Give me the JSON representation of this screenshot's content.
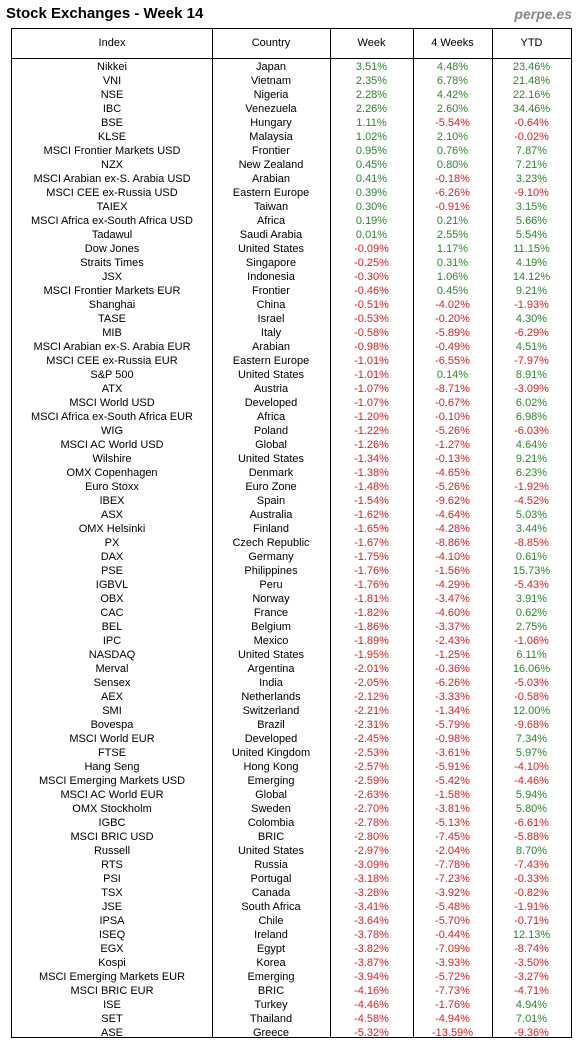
{
  "header": {
    "title": "Stock Exchanges - Week 14",
    "brand": "perpe.es"
  },
  "table": {
    "columns": [
      "Index",
      "Country",
      "Week",
      "4 Weeks",
      "YTD"
    ],
    "rows": [
      [
        "Nikkei",
        "Japan",
        "3.51%",
        "4.48%",
        "23.46%"
      ],
      [
        "VNI",
        "Vietnam",
        "2.35%",
        "6.78%",
        "21.48%"
      ],
      [
        "NSE",
        "Nigeria",
        "2.28%",
        "4.42%",
        "22.16%"
      ],
      [
        "IBC",
        "Venezuela",
        "2.26%",
        "2.60%",
        "34.46%"
      ],
      [
        "BSE",
        "Hungary",
        "1.11%",
        "-5.54%",
        "-0.64%"
      ],
      [
        "KLSE",
        "Malaysia",
        "1.02%",
        "2.10%",
        "-0.02%"
      ],
      [
        "MSCI Frontier Markets USD",
        "Frontier",
        "0.95%",
        "0.76%",
        "7.87%"
      ],
      [
        "NZX",
        "New Zealand",
        "0.45%",
        "0.80%",
        "7.21%"
      ],
      [
        "MSCI Arabian ex-S. Arabia USD",
        "Arabian",
        "0.41%",
        "-0.18%",
        "3.23%"
      ],
      [
        "MSCI CEE ex-Russia USD",
        "Eastern Europe",
        "0.39%",
        "-6.26%",
        "-9.10%"
      ],
      [
        "TAIEX",
        "Taiwan",
        "0.30%",
        "-0.91%",
        "3.15%"
      ],
      [
        "MSCI Africa ex-South Africa USD",
        "Africa",
        "0.19%",
        "0.21%",
        "5.66%"
      ],
      [
        "Tadawul",
        "Saudi Arabia",
        "0.01%",
        "2.55%",
        "5.54%"
      ],
      [
        "Dow Jones",
        "United States",
        "-0.09%",
        "1.17%",
        "11.15%"
      ],
      [
        "Straits Times",
        "Singapore",
        "-0.25%",
        "0.31%",
        "4.19%"
      ],
      [
        "JSX",
        "Indonesia",
        "-0.30%",
        "1.06%",
        "14.12%"
      ],
      [
        "MSCI Frontier Markets EUR",
        "Frontier",
        "-0.46%",
        "0.45%",
        "9.21%"
      ],
      [
        "Shanghai",
        "China",
        "-0.51%",
        "-4.02%",
        "-1.93%"
      ],
      [
        "TASE",
        "Israel",
        "-0.53%",
        "-0.20%",
        "4.30%"
      ],
      [
        "MIB",
        "Italy",
        "-0.58%",
        "-5.89%",
        "-6.29%"
      ],
      [
        "MSCI Arabian ex-S. Arabia EUR",
        "Arabian",
        "-0.98%",
        "-0.49%",
        "4.51%"
      ],
      [
        "MSCI CEE ex-Russia EUR",
        "Eastern Europe",
        "-1.01%",
        "-6.55%",
        "-7.97%"
      ],
      [
        "S&P 500",
        "United States",
        "-1.01%",
        "0.14%",
        "8.91%"
      ],
      [
        "ATX",
        "Austria",
        "-1.07%",
        "-8.71%",
        "-3.09%"
      ],
      [
        "MSCI World USD",
        "Developed",
        "-1.07%",
        "-0.67%",
        "6.02%"
      ],
      [
        "MSCI Africa ex-South Africa EUR",
        "Africa",
        "-1.20%",
        "-0.10%",
        "6.98%"
      ],
      [
        "WIG",
        "Poland",
        "-1.22%",
        "-5.26%",
        "-6.03%"
      ],
      [
        "MSCI AC World USD",
        "Global",
        "-1.26%",
        "-1.27%",
        "4.64%"
      ],
      [
        "Wilshire",
        "United States",
        "-1.34%",
        "-0.13%",
        "9.21%"
      ],
      [
        "OMX Copenhagen",
        "Denmark",
        "-1.38%",
        "-4.65%",
        "6.23%"
      ],
      [
        "Euro Stoxx",
        "Euro Zone",
        "-1.48%",
        "-5.26%",
        "-1.92%"
      ],
      [
        "IBEX",
        "Spain",
        "-1.54%",
        "-9.62%",
        "-4.52%"
      ],
      [
        "ASX",
        "Australia",
        "-1.62%",
        "-4.64%",
        "5.03%"
      ],
      [
        "OMX Helsinki",
        "Finland",
        "-1.65%",
        "-4.28%",
        "3.44%"
      ],
      [
        "PX",
        "Czech Republic",
        "-1.67%",
        "-8.86%",
        "-8.85%"
      ],
      [
        "DAX",
        "Germany",
        "-1.75%",
        "-4.10%",
        "0.61%"
      ],
      [
        "PSE",
        "Philippines",
        "-1.76%",
        "-1.56%",
        "15.73%"
      ],
      [
        "IGBVL",
        "Peru",
        "-1.76%",
        "-4.29%",
        "-5.43%"
      ],
      [
        "OBX",
        "Norway",
        "-1.81%",
        "-3.47%",
        "3.91%"
      ],
      [
        "CAC",
        "France",
        "-1.82%",
        "-4.60%",
        "0.62%"
      ],
      [
        "BEL",
        "Belgium",
        "-1.86%",
        "-3.37%",
        "2.75%"
      ],
      [
        "IPC",
        "Mexico",
        "-1.89%",
        "-2.43%",
        "-1.06%"
      ],
      [
        "NASDAQ",
        "United States",
        "-1.95%",
        "-1.25%",
        "6.11%"
      ],
      [
        "Merval",
        "Argentina",
        "-2.01%",
        "-0.36%",
        "16.06%"
      ],
      [
        "Sensex",
        "India",
        "-2.05%",
        "-6.26%",
        "-5.03%"
      ],
      [
        "AEX",
        "Netherlands",
        "-2.12%",
        "-3.33%",
        "-0.58%"
      ],
      [
        "SMI",
        "Switzerland",
        "-2.21%",
        "-1.34%",
        "12.00%"
      ],
      [
        "Bovespa",
        "Brazil",
        "-2.31%",
        "-5.79%",
        "-9.68%"
      ],
      [
        "MSCI World EUR",
        "Developed",
        "-2.45%",
        "-0.98%",
        "7.34%"
      ],
      [
        "FTSE",
        "United Kingdom",
        "-2.53%",
        "-3.61%",
        "5.97%"
      ],
      [
        "Hang Seng",
        "Hong Kong",
        "-2.57%",
        "-5.91%",
        "-4.10%"
      ],
      [
        "MSCI Emerging Markets USD",
        "Emerging",
        "-2.59%",
        "-5.42%",
        "-4.46%"
      ],
      [
        "MSCI AC World EUR",
        "Global",
        "-2.63%",
        "-1.58%",
        "5.94%"
      ],
      [
        "OMX Stockholm",
        "Sweden",
        "-2.70%",
        "-3.81%",
        "5.80%"
      ],
      [
        "IGBC",
        "Colombia",
        "-2.78%",
        "-5.13%",
        "-6.61%"
      ],
      [
        "MSCI BRIC USD",
        "BRIC",
        "-2.80%",
        "-7.45%",
        "-5.88%"
      ],
      [
        "Russell",
        "United States",
        "-2.97%",
        "-2.04%",
        "8.70%"
      ],
      [
        "RTS",
        "Russia",
        "-3.09%",
        "-7.78%",
        "-7.43%"
      ],
      [
        "PSI",
        "Portugal",
        "-3.18%",
        "-7.23%",
        "-0.33%"
      ],
      [
        "TSX",
        "Canada",
        "-3.28%",
        "-3.92%",
        "-0.82%"
      ],
      [
        "JSE",
        "South Africa",
        "-3.41%",
        "-5.48%",
        "-1.91%"
      ],
      [
        "IPSA",
        "Chile",
        "-3.64%",
        "-5.70%",
        "-0.71%"
      ],
      [
        "ISEQ",
        "Ireland",
        "-3.78%",
        "-0.44%",
        "12.13%"
      ],
      [
        "EGX",
        "Egypt",
        "-3.82%",
        "-7.09%",
        "-8.74%"
      ],
      [
        "Kospi",
        "Korea",
        "-3.87%",
        "-3.93%",
        "-3.50%"
      ],
      [
        "MSCI Emerging Markets EUR",
        "Emerging",
        "-3.94%",
        "-5.72%",
        "-3.27%"
      ],
      [
        "MSCI BRIC EUR",
        "BRIC",
        "-4.16%",
        "-7.73%",
        "-4.71%"
      ],
      [
        "ISE",
        "Turkey",
        "-4.46%",
        "-1.76%",
        "4.94%"
      ],
      [
        "SET",
        "Thailand",
        "-4.58%",
        "-4.94%",
        "7.01%"
      ],
      [
        "ASE",
        "Greece",
        "-5.32%",
        "-13.59%",
        "-9.36%"
      ]
    ]
  }
}
